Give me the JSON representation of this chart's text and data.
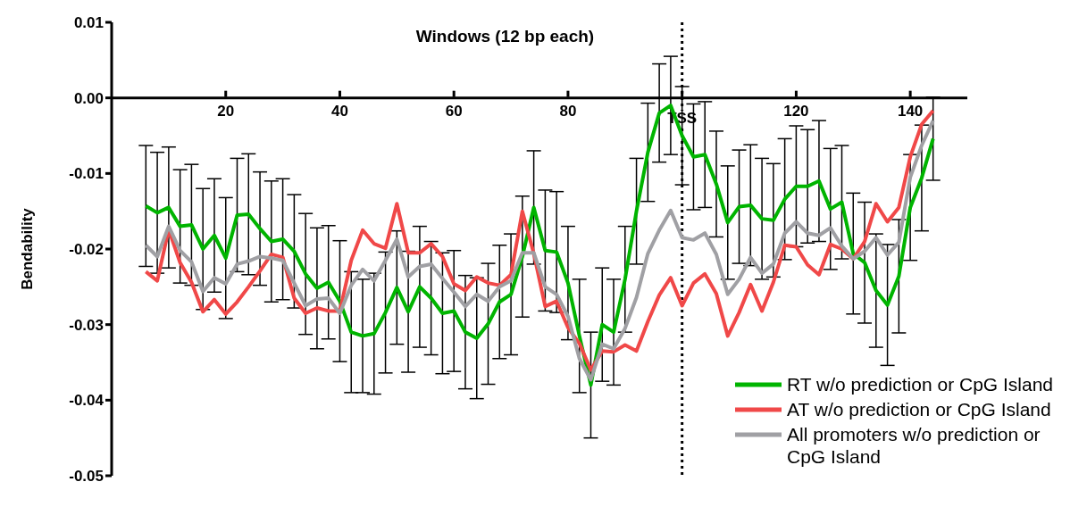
{
  "chart_data": {
    "type": "line",
    "xlabel": "Windows (12 bp each)",
    "ylabel": "Bendability",
    "x": [
      6,
      8,
      10,
      12,
      14,
      16,
      18,
      20,
      22,
      24,
      26,
      28,
      30,
      32,
      34,
      36,
      38,
      40,
      42,
      44,
      46,
      48,
      50,
      52,
      54,
      56,
      58,
      60,
      62,
      64,
      66,
      68,
      70,
      72,
      74,
      76,
      78,
      80,
      82,
      84,
      86,
      88,
      90,
      92,
      94,
      96,
      98,
      100,
      102,
      104,
      106,
      108,
      110,
      112,
      114,
      116,
      118,
      120,
      122,
      124,
      126,
      128,
      130,
      132,
      134,
      136,
      138,
      140,
      142,
      144
    ],
    "series": [
      {
        "name": "RT w/o prediction or CpG Island",
        "color": "#00b400",
        "values": [
          -0.0143,
          -0.0152,
          -0.0145,
          -0.017,
          -0.0168,
          -0.02,
          -0.0182,
          -0.0212,
          -0.0155,
          -0.0154,
          -0.0173,
          -0.019,
          -0.0187,
          -0.0203,
          -0.0233,
          -0.0252,
          -0.0244,
          -0.0269,
          -0.031,
          -0.0315,
          -0.0312,
          -0.0284,
          -0.0251,
          -0.0283,
          -0.025,
          -0.0265,
          -0.0285,
          -0.0282,
          -0.031,
          -0.0318,
          -0.0299,
          -0.027,
          -0.026,
          -0.021,
          -0.0145,
          -0.0202,
          -0.0204,
          -0.0245,
          -0.0315,
          -0.038,
          -0.03,
          -0.031,
          -0.024,
          -0.015,
          -0.0072,
          -0.002,
          -0.001,
          -0.005,
          -0.0078,
          -0.0075,
          -0.0114,
          -0.0165,
          -0.0144,
          -0.0142,
          -0.016,
          -0.0162,
          -0.0134,
          -0.0117,
          -0.0117,
          -0.011,
          -0.0147,
          -0.0138,
          -0.0206,
          -0.0218,
          -0.0255,
          -0.0274,
          -0.0236,
          -0.0145,
          -0.0106,
          -0.0054
        ],
        "errors": [
          0.008,
          0.008,
          0.008,
          0.0075,
          0.008,
          0.008,
          0.0075,
          0.008,
          0.0075,
          0.008,
          0.0075,
          0.008,
          0.008,
          0.0075,
          0.008,
          0.008,
          0.0075,
          0.008,
          0.008,
          0.0075,
          0.008,
          0.008,
          0.0075,
          0.008,
          0.008,
          0.0075,
          0.008,
          0.008,
          0.0075,
          0.008,
          0.008,
          0.0075,
          0.008,
          0.008,
          0.0075,
          0.008,
          0.008,
          0.0075,
          0.0075,
          0.007,
          0.0075,
          0.007,
          0.007,
          0.007,
          0.0065,
          0.0065,
          0.0065,
          0.0065,
          0.007,
          0.007,
          0.007,
          0.0075,
          0.0075,
          0.008,
          0.008,
          0.0075,
          0.008,
          0.008,
          0.0075,
          0.008,
          0.008,
          0.0075,
          0.008,
          0.008,
          0.0075,
          0.008,
          0.0075,
          0.007,
          0.007,
          0.0055
        ]
      },
      {
        "name": "AT w/o prediction or CpG Island",
        "color": "#f04848",
        "values": [
          -0.023,
          -0.0242,
          -0.0174,
          -0.0218,
          -0.0244,
          -0.0283,
          -0.0267,
          -0.0286,
          -0.027,
          -0.025,
          -0.0229,
          -0.0207,
          -0.0211,
          -0.0265,
          -0.0285,
          -0.0278,
          -0.0282,
          -0.0282,
          -0.0215,
          -0.0175,
          -0.0193,
          -0.0199,
          -0.014,
          -0.0205,
          -0.0205,
          -0.0193,
          -0.021,
          -0.0246,
          -0.0255,
          -0.0237,
          -0.0245,
          -0.0248,
          -0.0234,
          -0.015,
          -0.0206,
          -0.0276,
          -0.0269,
          -0.0304,
          -0.0325,
          -0.036,
          -0.0335,
          -0.0336,
          -0.0327,
          -0.0335,
          -0.0296,
          -0.0261,
          -0.0238,
          -0.0275,
          -0.0245,
          -0.0233,
          -0.0259,
          -0.0315,
          -0.0284,
          -0.0247,
          -0.0282,
          -0.0244,
          -0.0195,
          -0.0197,
          -0.0221,
          -0.0234,
          -0.0194,
          -0.02,
          -0.0213,
          -0.019,
          -0.014,
          -0.0164,
          -0.0145,
          -0.0078,
          -0.0035,
          -0.0017
        ]
      },
      {
        "name": "All promoters w/o prediction or CpG Island",
        "color": "#a0a0a4",
        "values": [
          -0.0195,
          -0.021,
          -0.017,
          -0.0202,
          -0.0217,
          -0.0256,
          -0.0238,
          -0.0246,
          -0.022,
          -0.0216,
          -0.021,
          -0.0212,
          -0.0215,
          -0.0245,
          -0.0275,
          -0.0266,
          -0.0265,
          -0.0285,
          -0.0248,
          -0.0227,
          -0.0242,
          -0.0215,
          -0.0187,
          -0.0237,
          -0.0223,
          -0.022,
          -0.0239,
          -0.0257,
          -0.0276,
          -0.026,
          -0.0269,
          -0.025,
          -0.0242,
          -0.0205,
          -0.0205,
          -0.025,
          -0.026,
          -0.0289,
          -0.0345,
          -0.0373,
          -0.0326,
          -0.0332,
          -0.0305,
          -0.0264,
          -0.0206,
          -0.0175,
          -0.0149,
          -0.0185,
          -0.0188,
          -0.0179,
          -0.0207,
          -0.026,
          -0.024,
          -0.0211,
          -0.0232,
          -0.022,
          -0.0179,
          -0.0164,
          -0.0179,
          -0.0182,
          -0.0172,
          -0.0196,
          -0.0213,
          -0.0203,
          -0.0185,
          -0.0208,
          -0.0191,
          -0.0105,
          -0.0063,
          -0.003
        ]
      }
    ],
    "xlim": [
      0,
      150
    ],
    "xticks": [
      20,
      40,
      60,
      80,
      {
        "value": 100,
        "label": null
      },
      120,
      140
    ],
    "ylim": [
      -0.05,
      0.01
    ],
    "yticks": [
      -0.05,
      -0.04,
      -0.03,
      -0.02,
      -0.01,
      {
        "value": 0,
        "label": "0.00"
      },
      0.01
    ],
    "ref_lines": [
      {
        "axis": "x",
        "value": 100,
        "label": "TSS",
        "line_style": "dotted"
      }
    ],
    "grid": false,
    "legend": "bottom right",
    "marker": "none",
    "line_style": "solid"
  }
}
